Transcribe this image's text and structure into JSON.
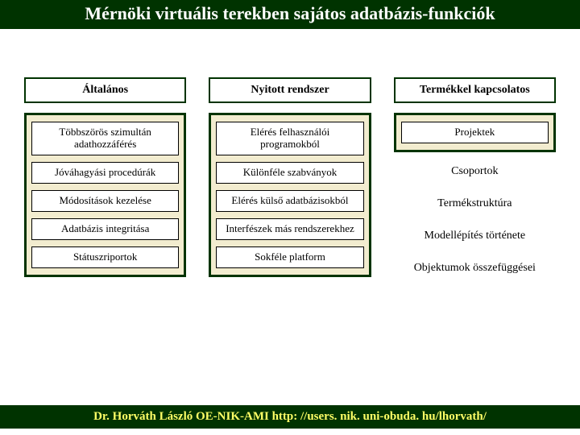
{
  "title": "Mérnöki virtuális terekben sajátos adatbázis-funkciók",
  "col1": {
    "head": "Általános",
    "items": [
      "Többszörös szimultán adathozzáférés",
      "Jóváhagyási procedúrák",
      "Módosítások kezelése",
      "Adatbázis integritása",
      "Státuszriportok"
    ]
  },
  "col2": {
    "head": "Nyitott rendszer",
    "items": [
      "Elérés felhasználói programokból",
      "Különféle szabványok",
      "Elérés külső adatbázisokból",
      "Interfészek más rendszerekhez",
      "Sokféle platform"
    ]
  },
  "col3": {
    "head": "Termékkel kapcsolatos",
    "items": [
      "Projektek",
      "Csoportok",
      "Termékstruktúra",
      "Modellépítés története",
      "Objektumok összefüggései"
    ]
  },
  "footer": "Dr. Horváth László   OE-NIK-AMI  http: //users. nik. uni-obuda. hu/lhorvath/"
}
